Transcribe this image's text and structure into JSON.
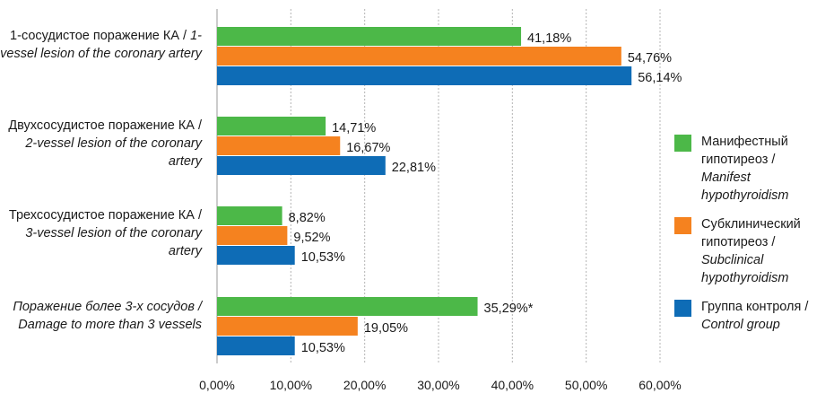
{
  "chart_data": {
    "type": "bar",
    "orientation": "horizontal",
    "categories": [
      {
        "ru": "1-сосудистое поражение КА /",
        "en": "1-vessel lesion of the coronary artery",
        "all_italic": false
      },
      {
        "ru": "Двухсосудистое поражение КА /",
        "en": "2-vessel lesion of the coronary artery",
        "all_italic": false
      },
      {
        "ru": "Трехсосудистое поражение КА /",
        "en": "3-vessel lesion of the coronary artery",
        "all_italic": false
      },
      {
        "ru": "Поражение более 3-х сосудов /",
        "en": "Damage to more than 3 vessels",
        "all_italic": true
      }
    ],
    "series": [
      {
        "ru": "Манифестный гипотиреоз /",
        "en": "Manifest hypothyroidism",
        "color": "#4cb848",
        "values": [
          41.18,
          14.71,
          8.82,
          35.29
        ],
        "labels": [
          "41,18%",
          "14,71%",
          "8,82%",
          "35,29%*"
        ]
      },
      {
        "ru": "Субклинический гипотиреоз /",
        "en": "Subclinical hypothyroidism",
        "color": "#f5821f",
        "values": [
          54.76,
          16.67,
          9.52,
          19.05
        ],
        "labels": [
          "54,76%",
          "16,67%",
          "9,52%",
          "19,05%"
        ]
      },
      {
        "ru": "Группа контроля /",
        "en": "Control group",
        "color": "#0e6cb6",
        "values": [
          56.14,
          22.81,
          10.53,
          10.53
        ],
        "labels": [
          "56,14%",
          "22,81%",
          "10,53%",
          "10,53%"
        ]
      }
    ],
    "xlim": [
      0,
      60
    ],
    "xticks": [
      0,
      10,
      20,
      30,
      40,
      50,
      60
    ],
    "xtick_labels": [
      "0,00%",
      "10,00%",
      "20,00%",
      "30,00%",
      "40,00%",
      "50,00%",
      "60,00%"
    ],
    "grid": true,
    "legend_position": "right"
  }
}
